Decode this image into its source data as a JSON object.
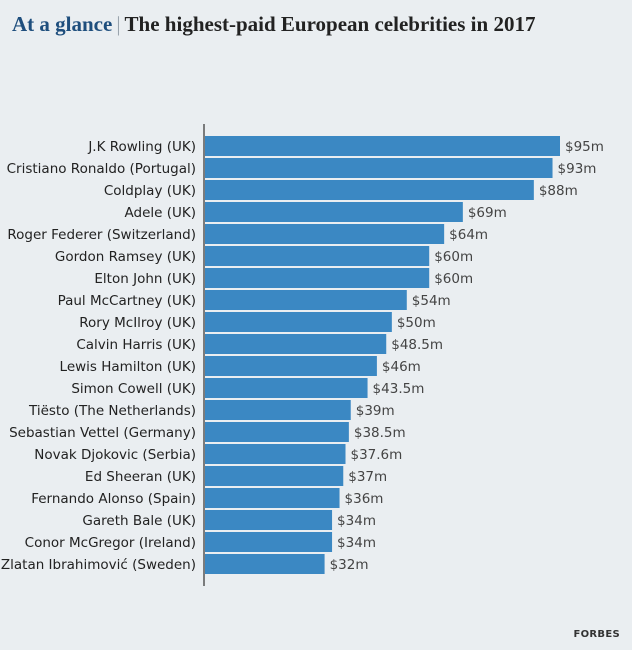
{
  "header": {
    "kicker": "At a glance",
    "separator": "|",
    "title": "The highest-paid European celebrities in 2017"
  },
  "source": "FORBES",
  "colors": {
    "bar": "#3b88c3",
    "axis": "#555555",
    "background": "#eaeef1"
  },
  "chart_data": {
    "type": "bar",
    "orientation": "horizontal",
    "title": "The highest-paid European celebrities in 2017",
    "xlim": [
      0,
      95
    ],
    "grid": false,
    "categories": [
      "J.K Rowling (UK)",
      "Cristiano Ronaldo (Portugal)",
      "Coldplay (UK)",
      "Adele (UK)",
      "Roger Federer (Switzerland)",
      "Gordon Ramsey (UK)",
      "Elton John (UK)",
      "Paul McCartney (UK)",
      "Rory McIlroy (UK)",
      "Calvin Harris (UK)",
      "Lewis Hamilton (UK)",
      "Simon Cowell (UK)",
      "Tiësto (The Netherlands)",
      "Sebastian Vettel (Germany)",
      "Novak Djokovic (Serbia)",
      "Ed Sheeran (UK)",
      "Fernando Alonso (Spain)",
      "Gareth Bale (UK)",
      "Conor McGregor (Ireland)",
      "Zlatan Ibrahimović (Sweden)"
    ],
    "values": [
      95,
      93,
      88,
      69,
      64,
      60,
      60,
      54,
      50,
      48.5,
      46,
      43.5,
      39,
      38.5,
      37.6,
      37,
      36,
      34,
      34,
      32
    ],
    "data_labels": [
      "$95m",
      "$93m",
      "$88m",
      "$69m",
      "$64m",
      "$60m",
      "$60m",
      "$54m",
      "$50m",
      "$48.5m",
      "$46m",
      "$43.5m",
      "$39m",
      "$38.5m",
      "$37.6m",
      "$37m",
      "$36m",
      "$34m",
      "$34m",
      "$32m"
    ]
  }
}
